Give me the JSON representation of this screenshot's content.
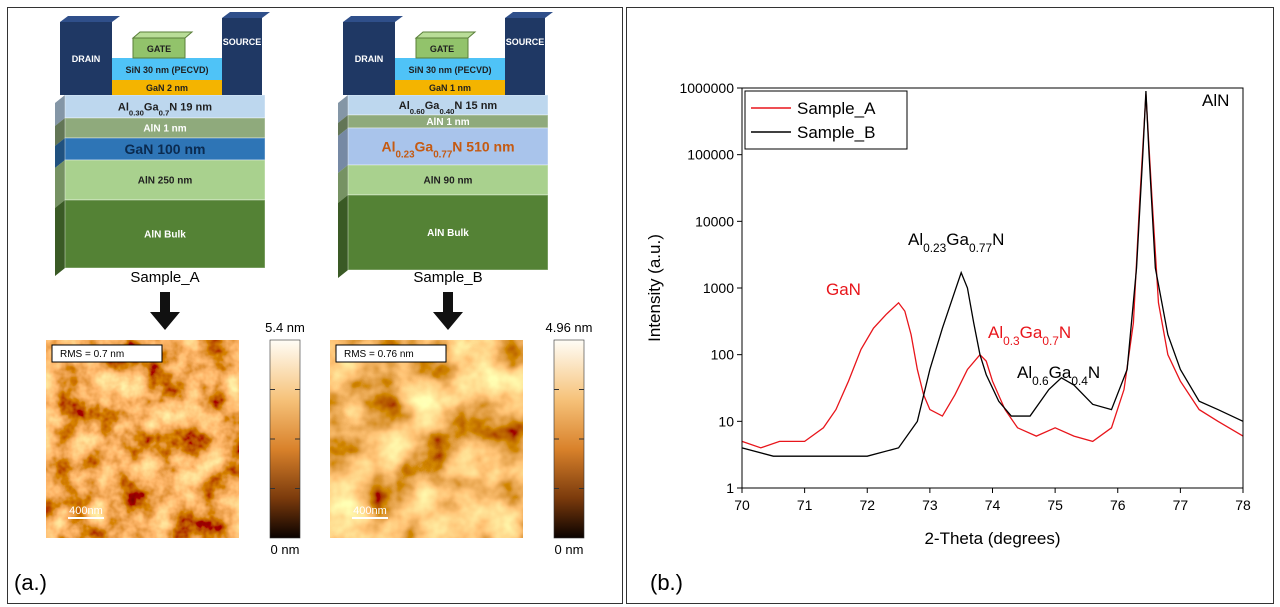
{
  "figure_a": {
    "panel_label": "(a.)",
    "devices": [
      {
        "sample": "Sample_A",
        "layers": [
          [
            "DRAIN"
          ],
          [
            "SOURCE"
          ],
          [
            "GATE"
          ],
          [
            "SiN 30 nm (PECVD)"
          ],
          [
            "GaN 2 nm"
          ],
          [
            "Al",
            "0.30",
            "Ga",
            "0.7",
            "N 19 nm"
          ],
          [
            "AlN 1 nm"
          ],
          [
            "GaN 100 nm"
          ],
          [
            "AlN 250 nm"
          ],
          [
            "AlN Bulk"
          ]
        ],
        "afm": {
          "rms": "RMS = 0.7 nm",
          "scale_bar": "400nm",
          "colorbar_max": "5.4 nm",
          "colorbar_min": "0 nm"
        }
      },
      {
        "sample": "Sample_B",
        "layers": [
          [
            "DRAIN"
          ],
          [
            "SOURCE"
          ],
          [
            "GATE"
          ],
          [
            "SiN 30 nm (PECVD)"
          ],
          [
            "GaN 1 nm"
          ],
          [
            "Al",
            "0.60",
            "Ga",
            "0.40",
            "N 15 nm"
          ],
          [
            "AlN 1 nm"
          ],
          [
            "Al",
            "0.23",
            "Ga",
            "0.77",
            "N 510 nm"
          ],
          [
            "AlN 90 nm"
          ],
          [
            "AlN Bulk"
          ]
        ],
        "afm": {
          "rms": "RMS = 0.76 nm",
          "scale_bar": "400nm",
          "colorbar_max": "4.96 nm",
          "colorbar_min": "0 nm"
        }
      }
    ]
  },
  "chart_data": {
    "type": "line",
    "panel_label": "(b.)",
    "x_label": "2-Theta (degrees)",
    "y_label": "Intensity (a.u.)",
    "xlim": [
      70,
      78
    ],
    "xticks": [
      70,
      71,
      72,
      73,
      74,
      75,
      76,
      77,
      78
    ],
    "ylim": [
      1,
      1000000
    ],
    "yticks": [
      1,
      10,
      100,
      1000,
      10000,
      100000,
      1000000
    ],
    "log_y": true,
    "legend": "upper left",
    "series": [
      {
        "name": "Sample_A",
        "color": "#e8151b",
        "x": [
          70,
          70.3,
          70.6,
          71,
          71.3,
          71.5,
          71.7,
          71.9,
          72.1,
          72.3,
          72.5,
          72.6,
          72.7,
          72.8,
          72.9,
          73.0,
          73.2,
          73.4,
          73.6,
          73.8,
          73.9,
          74.0,
          74.2,
          74.4,
          74.7,
          75.0,
          75.3,
          75.6,
          75.9,
          76.1,
          76.25,
          76.35,
          76.45,
          76.55,
          76.65,
          76.8,
          77.0,
          77.3,
          77.6,
          78
        ],
        "values": [
          5,
          4,
          5,
          5,
          8,
          15,
          40,
          120,
          250,
          400,
          600,
          450,
          200,
          60,
          25,
          15,
          12,
          25,
          60,
          100,
          80,
          40,
          15,
          8,
          6,
          8,
          6,
          5,
          8,
          30,
          300,
          20000,
          800000,
          20000,
          600,
          100,
          40,
          15,
          10,
          6
        ]
      },
      {
        "name": "Sample_B",
        "color": "#000000",
        "x": [
          70,
          70.5,
          71,
          71.5,
          72,
          72.5,
          72.8,
          73.0,
          73.2,
          73.4,
          73.5,
          73.6,
          73.7,
          73.8,
          73.9,
          74.1,
          74.3,
          74.6,
          74.9,
          75.1,
          75.3,
          75.6,
          75.9,
          76.15,
          76.3,
          76.4,
          76.45,
          76.5,
          76.6,
          76.8,
          77.0,
          77.3,
          77.6,
          78
        ],
        "values": [
          4,
          3,
          3,
          3,
          3,
          4,
          10,
          60,
          250,
          900,
          1700,
          1000,
          300,
          100,
          50,
          20,
          12,
          12,
          30,
          45,
          35,
          18,
          15,
          60,
          2000,
          100000,
          900000,
          100000,
          2000,
          200,
          60,
          20,
          15,
          10
        ]
      }
    ],
    "annotations": [
      {
        "parts": [
          "AlN"
        ],
        "color": "#000000"
      },
      {
        "parts": [
          "GaN"
        ],
        "color": "#e8151b"
      },
      {
        "parts": [
          "Al",
          "0.23",
          "Ga",
          "0.77",
          "N"
        ],
        "color": "#000000"
      },
      {
        "parts": [
          "Al",
          "0.3",
          "Ga",
          "0.7",
          "N"
        ],
        "color": "#e8151b"
      },
      {
        "parts": [
          "Al",
          "0.6",
          "Ga",
          "0.4",
          "N"
        ],
        "color": "#000000"
      }
    ]
  }
}
